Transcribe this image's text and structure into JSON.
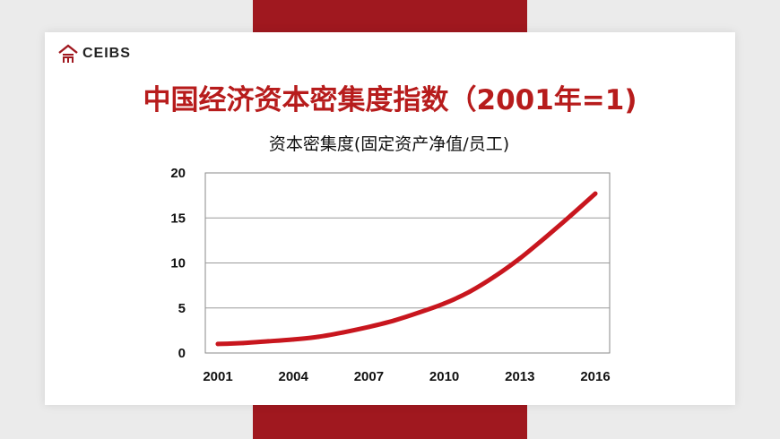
{
  "slide": {
    "logo_text": "CEIBS",
    "title": "中国经济资本密集度指数（2001年=1)"
  },
  "colors": {
    "brand_red": "#a0181f",
    "title_red": "#b71c1c",
    "line_red": "#c8161e"
  },
  "icons": {
    "logo": "ceibs-logo-icon"
  },
  "chart_data": {
    "type": "line",
    "title": "资本密集度(固定资产净值/员工)",
    "xlabel": "",
    "ylabel": "",
    "x_ticks": [
      "2001",
      "2004",
      "2007",
      "2010",
      "2013",
      "2016"
    ],
    "y_ticks": [
      "0",
      "5",
      "10",
      "15",
      "20"
    ],
    "ylim": [
      0,
      20
    ],
    "xlim": [
      2001,
      2016
    ],
    "grid": true,
    "legend": "none",
    "series": [
      {
        "x": [
          2001,
          2002,
          2003,
          2004,
          2005,
          2006,
          2007,
          2008,
          2009,
          2010,
          2011,
          2012,
          2013,
          2014,
          2015,
          2016
        ],
        "values": [
          1.0,
          1.1,
          1.3,
          1.5,
          1.8,
          2.3,
          2.9,
          3.6,
          4.5,
          5.5,
          6.8,
          8.5,
          10.5,
          12.8,
          15.2,
          17.7
        ]
      }
    ]
  }
}
